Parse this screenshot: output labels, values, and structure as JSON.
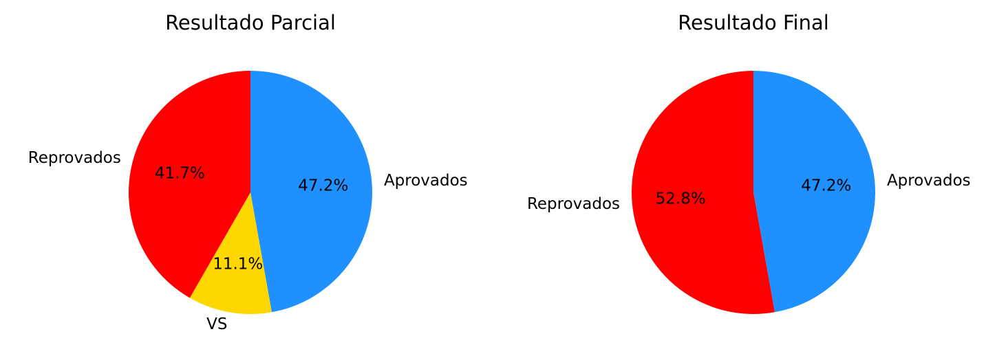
{
  "chart_data": [
    {
      "type": "pie",
      "title": "Resultado Parcial",
      "slices": [
        {
          "label": "Aprovados",
          "value": 47.2,
          "pct_label": "47.2%",
          "color": "#1E90FF"
        },
        {
          "label": "VS",
          "value": 11.1,
          "pct_label": "11.1%",
          "color": "#FFD700"
        },
        {
          "label": "Reprovados",
          "value": 41.7,
          "pct_label": "41.7%",
          "color": "#FF0000"
        }
      ],
      "start_angle_deg": 90,
      "direction": "clockwise"
    },
    {
      "type": "pie",
      "title": "Resultado Final",
      "slices": [
        {
          "label": "Aprovados",
          "value": 47.2,
          "pct_label": "47.2%",
          "color": "#1E90FF"
        },
        {
          "label": "Reprovados",
          "value": 52.8,
          "pct_label": "52.8%",
          "color": "#FF0000"
        }
      ],
      "start_angle_deg": 90,
      "direction": "clockwise"
    }
  ]
}
